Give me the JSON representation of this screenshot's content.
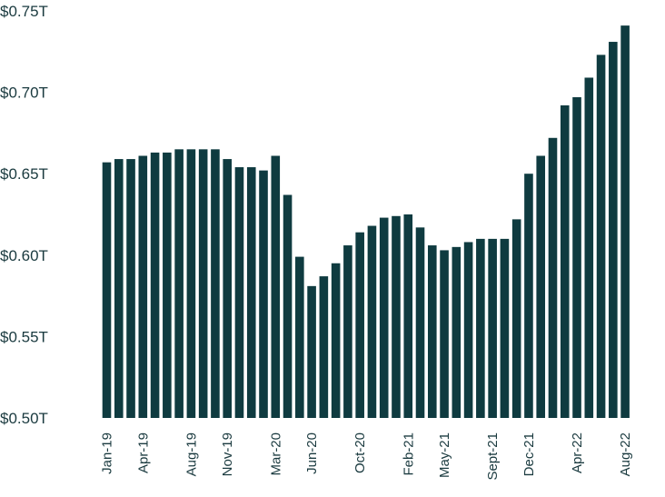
{
  "chart_data": {
    "type": "bar",
    "title": "",
    "xlabel": "",
    "ylabel": "",
    "ylim": [
      0.5,
      0.75
    ],
    "grid": false,
    "bar_color": "#0f3b40",
    "y_tick_values": [
      0.5,
      0.55,
      0.6,
      0.65,
      0.7,
      0.75
    ],
    "y_tick_labels": [
      "$0.50T",
      "$0.55T",
      "$0.60T",
      "$0.65T",
      "$0.70T",
      "$0.75T"
    ],
    "categories": [
      "Jan-19",
      "Feb-19",
      "Mar-19",
      "Apr-19",
      "May-19",
      "Jun-19",
      "Jul-19",
      "Aug-19",
      "Sep-19",
      "Oct-19",
      "Nov-19",
      "Dec-19",
      "Jan-20",
      "Feb-20",
      "Mar-20",
      "Apr-20",
      "May-20",
      "Jun-20",
      "Jul-20",
      "Aug-20",
      "Sep-20",
      "Oct-20",
      "Nov-20",
      "Dec-20",
      "Jan-21",
      "Feb-21",
      "Mar-21",
      "Apr-21",
      "May-21",
      "Jun-21",
      "Jul-21",
      "Aug-21",
      "Sept-21",
      "Oct-21",
      "Nov-21",
      "Dec-21",
      "Jan-22",
      "Feb-22",
      "Mar-22",
      "Apr-22",
      "May-22",
      "Jun-22",
      "Jul-22",
      "Aug-22"
    ],
    "x_tick_labels": [
      {
        "index": 0,
        "label": "Jan-19"
      },
      {
        "index": 3,
        "label": "Apr-19"
      },
      {
        "index": 7,
        "label": "Aug-19"
      },
      {
        "index": 10,
        "label": "Nov-19"
      },
      {
        "index": 14,
        "label": "Mar-20"
      },
      {
        "index": 17,
        "label": "Jun-20"
      },
      {
        "index": 21,
        "label": "Oct-20"
      },
      {
        "index": 25,
        "label": "Feb-21"
      },
      {
        "index": 28,
        "label": "May-21"
      },
      {
        "index": 32,
        "label": "Sept-21"
      },
      {
        "index": 35,
        "label": "Dec-21"
      },
      {
        "index": 39,
        "label": "Apr-22"
      },
      {
        "index": 43,
        "label": "Aug-22"
      }
    ],
    "values": [
      0.657,
      0.659,
      0.659,
      0.661,
      0.663,
      0.663,
      0.665,
      0.665,
      0.665,
      0.665,
      0.659,
      0.654,
      0.654,
      0.652,
      0.661,
      0.637,
      0.599,
      0.581,
      0.587,
      0.595,
      0.606,
      0.614,
      0.618,
      0.623,
      0.624,
      0.625,
      0.617,
      0.606,
      0.603,
      0.605,
      0.608,
      0.61,
      0.61,
      0.61,
      0.622,
      0.65,
      0.661,
      0.672,
      0.692,
      0.697,
      0.709,
      0.723,
      0.731,
      0.741
    ]
  }
}
